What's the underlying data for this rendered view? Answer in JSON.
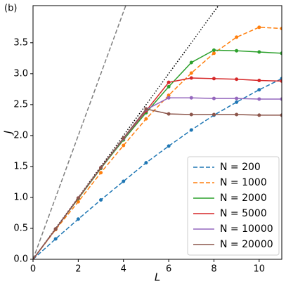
{
  "chart_data": {
    "type": "line",
    "panel_label": "(b)",
    "x_label": "L",
    "y_label": "J",
    "xlim": [
      0,
      11
    ],
    "ylim": [
      0,
      4.1
    ],
    "xticks": [
      0,
      2,
      4,
      6,
      8,
      10
    ],
    "yticks": [
      {
        "value": 0,
        "label": "0.0"
      },
      {
        "value": 0.5,
        "label": "0.5"
      },
      {
        "value": 1,
        "label": "1.0"
      },
      {
        "value": 1.5,
        "label": "1.5"
      },
      {
        "value": 2,
        "label": "2.0"
      },
      {
        "value": 2.5,
        "label": "2.5"
      },
      {
        "value": 3,
        "label": "3.0"
      },
      {
        "value": 3.5,
        "label": "3.5"
      }
    ],
    "reference_lines": [
      {
        "x": [
          0,
          4.1
        ],
        "values": [
          0,
          4.1
        ],
        "color": "#7f7f7f",
        "dash": "dashed"
      },
      {
        "x": [
          0,
          8.2
        ],
        "values": [
          0,
          4.1
        ],
        "color": "#000000",
        "dash": "dotted"
      }
    ],
    "x": [
      0,
      1,
      2,
      3,
      4,
      5,
      6,
      7,
      8,
      9,
      10,
      11
    ],
    "legend": "lower right",
    "series": [
      {
        "name": "N = 200",
        "color": "#1f77b4",
        "dash": "dashed",
        "values": [
          0,
          0.33,
          0.65,
          0.96,
          1.26,
          1.56,
          1.83,
          2.09,
          2.33,
          2.54,
          2.74,
          2.92
        ]
      },
      {
        "name": "N = 1000",
        "color": "#ff7f0e",
        "dash": "dashed",
        "values": [
          0,
          0.48,
          0.93,
          1.4,
          1.84,
          2.27,
          2.65,
          3.01,
          3.33,
          3.59,
          3.75,
          3.73
        ]
      },
      {
        "name": "N = 2000",
        "color": "#2ca02c",
        "dash": "solid",
        "values": [
          0,
          0.49,
          0.98,
          1.47,
          1.93,
          2.37,
          2.79,
          3.18,
          3.38,
          3.37,
          3.35,
          3.33
        ]
      },
      {
        "name": "N = 5000",
        "color": "#d62728",
        "dash": "solid",
        "values": [
          0,
          0.49,
          0.99,
          1.48,
          1.95,
          2.4,
          2.86,
          2.93,
          2.92,
          2.91,
          2.89,
          2.88
        ]
      },
      {
        "name": "N = 10000",
        "color": "#9467bd",
        "dash": "solid",
        "values": [
          0,
          0.49,
          0.99,
          1.48,
          1.95,
          2.42,
          2.61,
          2.61,
          2.6,
          2.6,
          2.59,
          2.59
        ]
      },
      {
        "name": "N = 20000",
        "color": "#8c564b",
        "dash": "solid",
        "values": [
          0,
          0.49,
          0.99,
          1.48,
          1.96,
          2.43,
          2.35,
          2.34,
          2.34,
          2.34,
          2.33,
          2.33
        ]
      }
    ]
  }
}
